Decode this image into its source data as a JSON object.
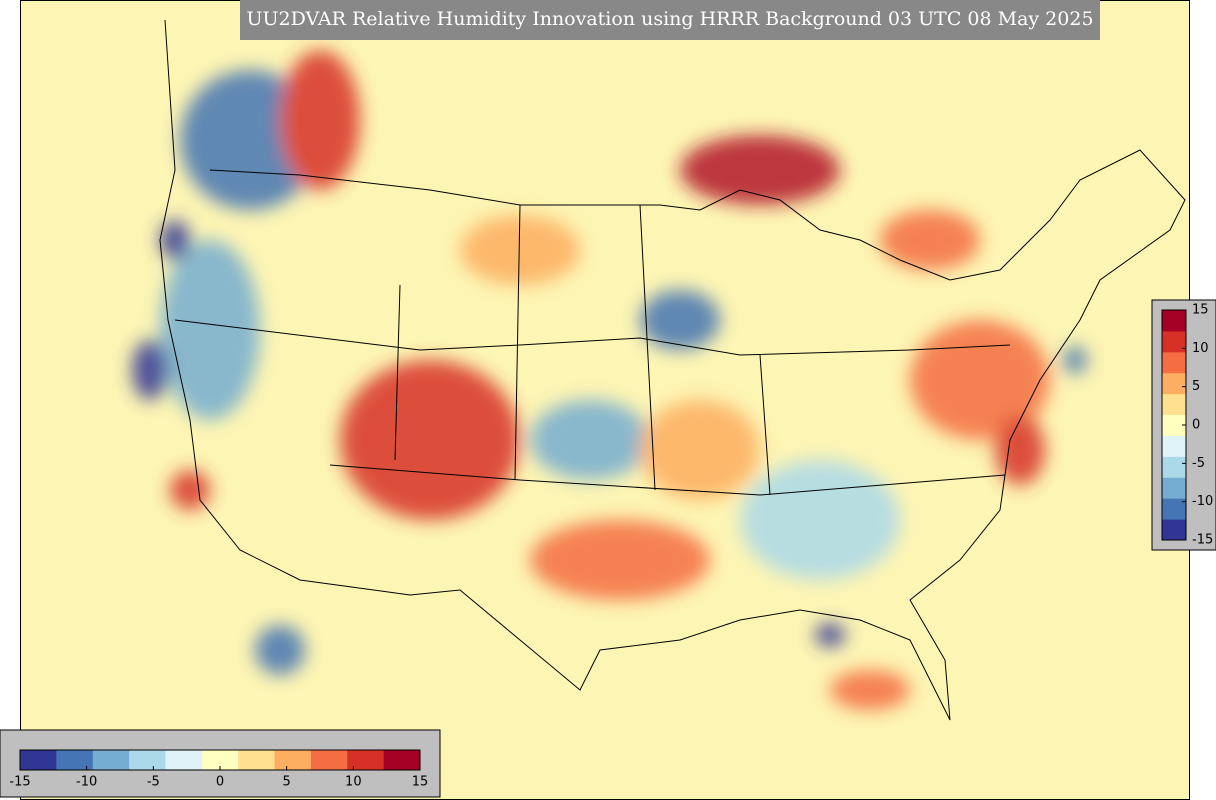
{
  "title": "UU2DVAR Relative Humidity Innovation using HRRR Background 03 UTC 08 May 2025",
  "colorbar_horizontal": {
    "lim": [
      -15,
      15
    ],
    "ticks": [
      -15,
      -10,
      -5,
      0,
      5,
      10,
      15
    ]
  },
  "colorbar_vertical": {
    "lim": [
      -15,
      15
    ],
    "ticks": [
      -15,
      -10,
      -5,
      0,
      5,
      10,
      15
    ]
  },
  "colormap": [
    "#313695",
    "#4575b4",
    "#74add1",
    "#abd9e9",
    "#e0f3f8",
    "#ffffbf",
    "#fee090",
    "#fdae61",
    "#f46d43",
    "#d73027",
    "#a50026"
  ]
}
